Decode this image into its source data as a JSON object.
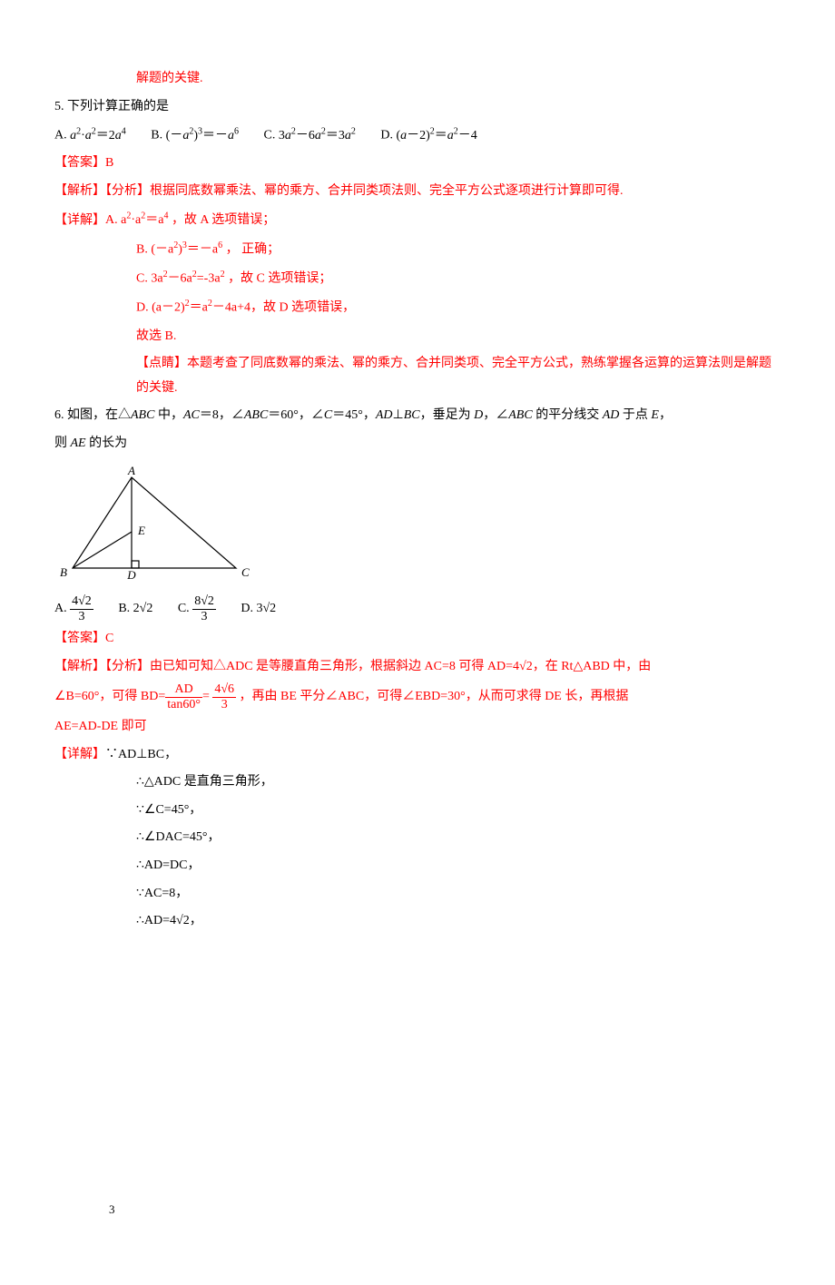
{
  "top_fragment": "解题的关键.",
  "q5": {
    "stem": "5. 下列计算正确的是",
    "opts": {
      "A_prefix": "A. ",
      "A_html": "<span class='italic'>a</span><sup>2</sup>·<span class='italic'>a</span><sup>2</sup>＝2<span class='italic'>a</span><sup>4</sup>",
      "B_prefix": "B. ",
      "B_html": "(－<span class='italic'>a</span><sup>2</sup>)<sup>3</sup>＝－<span class='italic'>a</span><sup>6</sup>",
      "C_prefix": "C. ",
      "C_html": "3<span class='italic'>a</span><sup>2</sup>－6<span class='italic'>a</span><sup>2</sup>＝3<span class='italic'>a</span><sup>2</sup>",
      "D_prefix": "D. ",
      "D_html": "(<span class='italic'>a</span>－2)<sup>2</sup>＝<span class='italic'>a</span><sup>2</sup>－4"
    },
    "answer": "【答案】B",
    "analysis": "【解析】【分析】根据同底数幂乘法、幂的乘方、合并同类项法则、完全平方公式逐项进行计算即可得.",
    "detail_label": "【详解】",
    "detail_A": "A. a<sup>2</sup>·a<sup>2</sup>＝a<sup>4</sup> ，故 A 选项错误；",
    "detail_B": "B. (－a<sup>2</sup>)<sup>3</sup>＝－a<sup>6</sup> ， 正确；",
    "detail_C": "C. 3a<sup>2</sup>－6a<sup>2</sup>=-3a<sup>2</sup> ，故 C 选项错误；",
    "detail_D": "D. (a－2)<sup>2</sup>＝a<sup>2</sup>－4a+4，故 D 选项错误，",
    "detail_end": "故选 B.",
    "point": "【点睛】本题考查了同底数幂的乘法、幂的乘方、合并同类项、完全平方公式，熟练掌握各运算的运算法则是解题的关键."
  },
  "q6": {
    "stem_l1": "6. 如图，在△<span class='italic'>ABC</span> 中，<span class='italic'>AC</span>＝8，∠<span class='italic'>ABC</span>＝60°，∠<span class='italic'>C</span>＝45°，<span class='italic'>AD</span>⊥<span class='italic'>BC</span>，垂足为 <span class='italic'>D</span>，∠<span class='italic'>ABC</span> 的平分线交 <span class='italic'>AD</span> 于点 <span class='italic'>E</span>，",
    "stem_l2": "则 <span class='italic'>AE</span> 的长为",
    "opts": {
      "A": "A. ",
      "B": "B. 2<span class='sqrt'>√2</span>",
      "C": "C. ",
      "D": "D. 3<span class='sqrt'>√2</span>"
    },
    "frac_A_num": "4√2",
    "frac_A_den": "3",
    "frac_C_num": "8√2",
    "frac_C_den": "3",
    "answer": "【答案】C",
    "analysis_p1_a": "【解析】【分析】由已知可知△ADC 是等腰直角三角形，根据斜边 AC=8 可得 AD=4",
    "analysis_p1_b": "，在 Rt△ABD 中，由",
    "analysis_p2_a": "∠B=60°，可得 BD=",
    "frac_bd1_num": "AD",
    "frac_bd1_den": "tan60°",
    "eq": "=",
    "frac_bd2_num": "4√6",
    "frac_bd2_den": "3",
    "analysis_p2_b": " ，再由 BE 平分∠ABC，可得∠EBD=30°，从而可求得 DE 长，再根据",
    "analysis_p3": "AE=AD-DE 即可",
    "detail_label": "【详解】",
    "d1": "∵AD⊥BC，",
    "d2": "∴△ADC 是直角三角形，",
    "d3": "∵∠C=45°，",
    "d4": "∴∠DAC=45°，",
    "d5": "∴AD=DC，",
    "d6": "∵AC=8，",
    "d7_a": "∴AD=4",
    "d7_b": "，"
  },
  "figure": {
    "A": "A",
    "B": "B",
    "C": "C",
    "D": "D",
    "E": "E",
    "stroke": "#000000",
    "label_font": "italic 13px 'Times New Roman', serif"
  },
  "colors": {
    "red": "#ff0000",
    "black": "#000000"
  },
  "page_number": "3"
}
